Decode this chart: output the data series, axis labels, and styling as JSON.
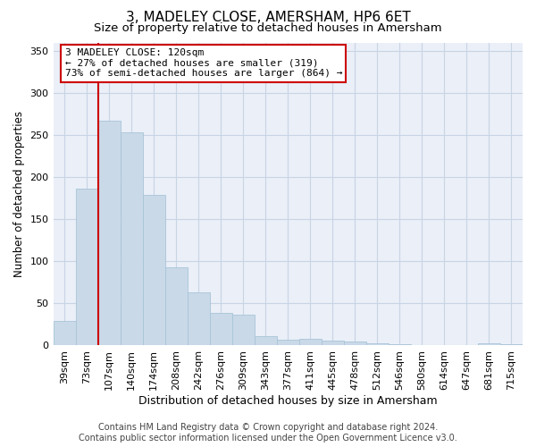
{
  "title": "3, MADELEY CLOSE, AMERSHAM, HP6 6ET",
  "subtitle": "Size of property relative to detached houses in Amersham",
  "xlabel": "Distribution of detached houses by size in Amersham",
  "ylabel": "Number of detached properties",
  "categories": [
    "39sqm",
    "73sqm",
    "107sqm",
    "140sqm",
    "174sqm",
    "208sqm",
    "242sqm",
    "276sqm",
    "309sqm",
    "343sqm",
    "377sqm",
    "411sqm",
    "445sqm",
    "478sqm",
    "512sqm",
    "546sqm",
    "580sqm",
    "614sqm",
    "647sqm",
    "681sqm",
    "715sqm"
  ],
  "values": [
    29,
    186,
    267,
    253,
    179,
    93,
    63,
    39,
    37,
    11,
    7,
    8,
    6,
    5,
    3,
    2,
    1,
    1,
    0,
    3,
    2
  ],
  "bar_color": "#c9d9e8",
  "bar_edge_color": "#a8c4d8",
  "vline_x": 2.0,
  "vline_color": "#cc0000",
  "annotation_line1": "3 MADELEY CLOSE: 120sqm",
  "annotation_line2": "← 27% of detached houses are smaller (319)",
  "annotation_line3": "73% of semi-detached houses are larger (864) →",
  "box_edge_color": "#cc0000",
  "ylim": [
    0,
    360
  ],
  "yticks": [
    0,
    50,
    100,
    150,
    200,
    250,
    300,
    350
  ],
  "grid_color": "#c8d4e4",
  "bg_color": "#eaeff8",
  "footer_line1": "Contains HM Land Registry data © Crown copyright and database right 2024.",
  "footer_line2": "Contains public sector information licensed under the Open Government Licence v3.0.",
  "title_fontsize": 11,
  "subtitle_fontsize": 9.5,
  "xlabel_fontsize": 9,
  "ylabel_fontsize": 8.5,
  "tick_fontsize": 8,
  "ann_fontsize": 8,
  "footer_fontsize": 7
}
